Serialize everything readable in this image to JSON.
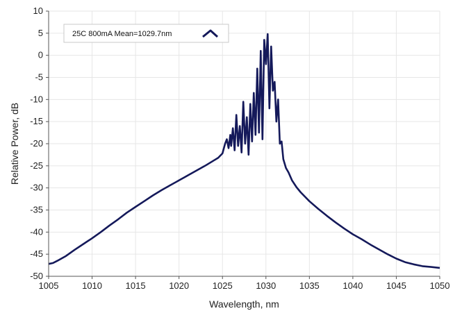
{
  "chart_data": {
    "type": "line",
    "title": "",
    "xlabel": "Wavelength, nm",
    "ylabel": "Relative Power, dB",
    "xlim": [
      1005,
      1050
    ],
    "ylim": [
      -50,
      10
    ],
    "x_ticks": [
      1005,
      1010,
      1015,
      1020,
      1025,
      1030,
      1035,
      1040,
      1045,
      1050
    ],
    "y_ticks": [
      10,
      5,
      0,
      -5,
      -10,
      -15,
      -20,
      -25,
      -30,
      -35,
      -40,
      -45,
      -50
    ],
    "grid": true,
    "legend_position": "top-left",
    "colors": {
      "series": "#14195a",
      "grid": "#e6e6e6",
      "axis": "#555555"
    },
    "series": [
      {
        "name": "25C 800mA Mean=1029.7nm",
        "x": [
          1005.0,
          1005.5,
          1006.0,
          1007.0,
          1008.0,
          1009.0,
          1010.0,
          1011.0,
          1012.0,
          1013.0,
          1014.0,
          1015.0,
          1016.0,
          1017.0,
          1018.0,
          1019.0,
          1020.0,
          1021.0,
          1022.0,
          1023.0,
          1024.0,
          1024.5,
          1025.0,
          1025.3,
          1025.5,
          1025.7,
          1025.9,
          1026.0,
          1026.2,
          1026.4,
          1026.6,
          1026.8,
          1027.0,
          1027.2,
          1027.4,
          1027.6,
          1027.8,
          1028.0,
          1028.2,
          1028.4,
          1028.6,
          1028.8,
          1029.0,
          1029.2,
          1029.4,
          1029.6,
          1029.8,
          1030.0,
          1030.2,
          1030.4,
          1030.6,
          1030.8,
          1031.0,
          1031.2,
          1031.4,
          1031.6,
          1031.8,
          1032.0,
          1032.3,
          1032.6,
          1033.0,
          1033.5,
          1034.0,
          1035.0,
          1036.0,
          1037.0,
          1038.0,
          1039.0,
          1040.0,
          1041.0,
          1042.0,
          1043.0,
          1044.0,
          1045.0,
          1046.0,
          1047.0,
          1048.0,
          1049.0,
          1050.0
        ],
        "y": [
          -47.2,
          -47.0,
          -46.5,
          -45.4,
          -44.0,
          -42.7,
          -41.4,
          -40.0,
          -38.5,
          -37.1,
          -35.6,
          -34.3,
          -33.0,
          -31.7,
          -30.5,
          -29.4,
          -28.3,
          -27.2,
          -26.1,
          -25.0,
          -23.8,
          -23.2,
          -22.2,
          -20.0,
          -19.0,
          -21.0,
          -18.0,
          -20.5,
          -16.5,
          -21.5,
          -13.5,
          -20.5,
          -16.0,
          -22.0,
          -10.5,
          -20.0,
          -14.0,
          -22.5,
          -11.0,
          -19.5,
          -8.5,
          -18.0,
          -3.0,
          -17.5,
          1.0,
          -19.0,
          3.5,
          -2.0,
          4.8,
          -12.0,
          2.0,
          -8.0,
          -6.0,
          -15.0,
          -10.0,
          -20.0,
          -19.5,
          -23.5,
          -25.5,
          -26.5,
          -28.3,
          -29.8,
          -31.0,
          -33.0,
          -34.7,
          -36.3,
          -37.8,
          -39.2,
          -40.5,
          -41.6,
          -42.8,
          -43.9,
          -45.0,
          -46.0,
          -46.8,
          -47.3,
          -47.7,
          -47.9,
          -48.1
        ]
      }
    ]
  }
}
